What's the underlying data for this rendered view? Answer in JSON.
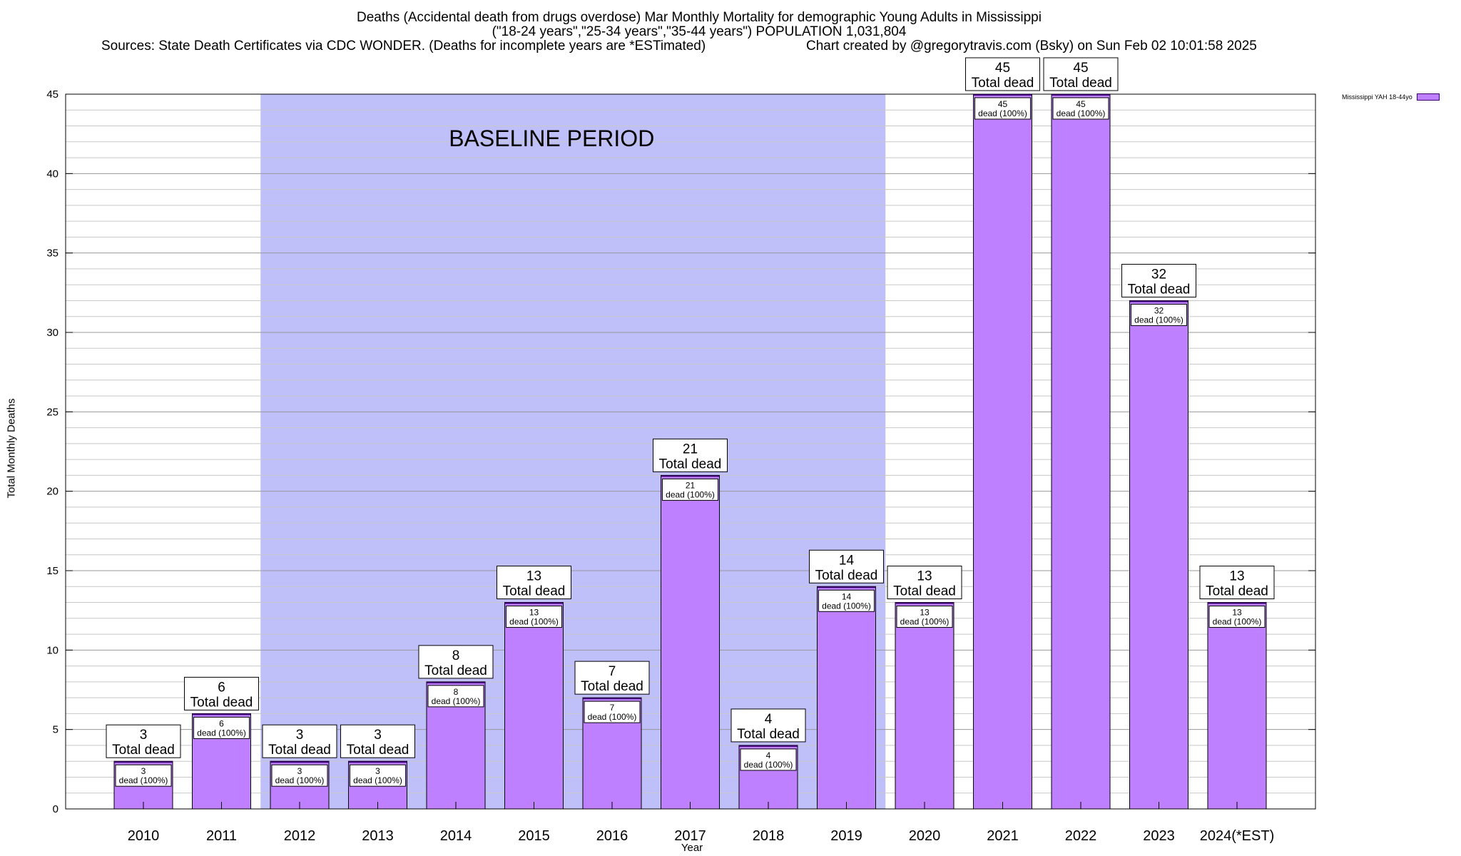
{
  "header": {
    "title_line1": "Deaths (Accidental death from drugs overdose) Mar Monthly Mortality for demographic Young Adults in Mississippi",
    "title_line2": "(\"18-24 years\",\"25-34 years\",\"35-44 years\") POPULATION 1,031,804",
    "sources": "Sources: State Death Certificates via CDC WONDER. (Deaths for incomplete years are *ESTimated)",
    "credit": "Chart created by @gregorytravis.com (Bsky) on Sun Feb 02 10:01:58 2025"
  },
  "chart_data": {
    "type": "bar",
    "xlabel": "Year",
    "ylabel": "Total Monthly Deaths",
    "ylim": [
      0,
      45
    ],
    "yticks": [
      0,
      5,
      10,
      15,
      20,
      25,
      30,
      35,
      40,
      45
    ],
    "grid": true,
    "legend_position": "top-right",
    "categories": [
      "2010",
      "2011",
      "2012",
      "2013",
      "2014",
      "2015",
      "2016",
      "2017",
      "2018",
      "2019",
      "2020",
      "2021",
      "2022",
      "2023",
      "2024(*EST)"
    ],
    "series": [
      {
        "name": "Mississippi YAH 18-44yo",
        "values": [
          3,
          6,
          3,
          3,
          8,
          13,
          7,
          21,
          4,
          14,
          13,
          45,
          45,
          32,
          13
        ],
        "color": "#bf80ff"
      }
    ],
    "total_label": "Total dead",
    "inner_label": "dead (100%)",
    "baseline": {
      "label": "BASELINE PERIOD",
      "from": "2012",
      "to": "2019",
      "color": "#bfbffa"
    }
  }
}
